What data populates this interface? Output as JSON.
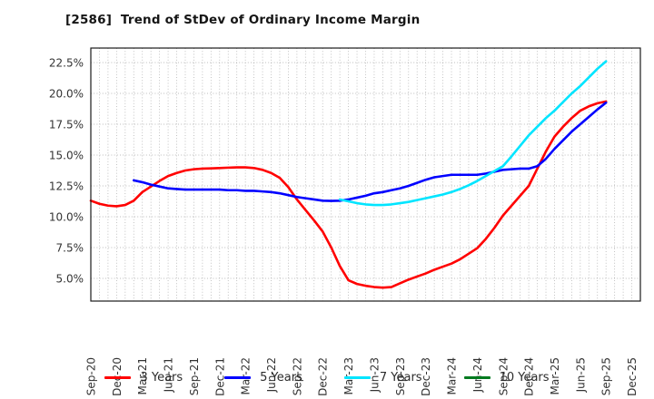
{
  "page": {
    "title": "[2586]  Trend of StDev of Ordinary Income Margin"
  },
  "chart_data": {
    "type": "line",
    "title": "[2586]  Trend of StDev of Ordinary Income Margin",
    "x_unit": "month",
    "x_start_label": "Sep-20",
    "x_tick_step_months": 3,
    "x_tick_labels": [
      "Sep-20",
      "Dec-20",
      "Mar-21",
      "Jun-21",
      "Sep-21",
      "Dec-21",
      "Mar-22",
      "Jun-22",
      "Sep-22",
      "Dec-22",
      "Mar-23",
      "Jun-23",
      "Sep-23",
      "Dec-23",
      "Mar-24",
      "Jun-24",
      "Sep-24",
      "Dec-24",
      "Mar-25",
      "Jun-25",
      "Sep-25",
      "Dec-25"
    ],
    "x_total_months": 64,
    "ylim": [
      3.16,
      23.6
    ],
    "yticks": [
      5.0,
      7.5,
      10.0,
      12.5,
      15.0,
      17.5,
      20.0,
      22.5
    ],
    "y_tick_labels": [
      "5.0%",
      "7.5%",
      "10.0%",
      "12.5%",
      "15.0%",
      "17.5%",
      "20.0%",
      "22.5%"
    ],
    "grid": "dotted-gray, horizontal at yticks, vertical monthly",
    "legend_position": "bottom-center",
    "series": [
      {
        "name": "3 Years",
        "color": "#ff0000",
        "start_month_index": 0,
        "monthly_values": [
          11.3,
          11.05,
          10.9,
          10.85,
          10.95,
          11.3,
          12.0,
          12.45,
          12.9,
          13.3,
          13.55,
          13.75,
          13.85,
          13.9,
          13.92,
          13.95,
          13.98,
          14.0,
          14.0,
          13.95,
          13.8,
          13.55,
          13.15,
          12.4,
          11.4,
          10.55,
          9.7,
          8.8,
          7.5,
          6.0,
          4.85,
          4.55,
          4.4,
          4.3,
          4.25,
          4.3,
          4.6,
          4.9,
          5.15,
          5.4,
          5.7,
          5.95,
          6.2,
          6.55,
          7.0,
          7.45,
          8.2,
          9.1,
          10.1,
          10.9,
          11.7,
          12.5,
          13.9,
          15.3,
          16.5,
          17.3,
          18.0,
          18.6,
          18.95,
          19.2,
          19.35
        ]
      },
      {
        "name": "5 Years",
        "color": "#0000ff",
        "start_month_index": 5,
        "monthly_values": [
          12.95,
          12.8,
          12.6,
          12.45,
          12.3,
          12.25,
          12.2,
          12.2,
          12.2,
          12.2,
          12.2,
          12.15,
          12.15,
          12.1,
          12.1,
          12.05,
          12.0,
          11.9,
          11.75,
          11.6,
          11.5,
          11.4,
          11.3,
          11.28,
          11.3,
          11.4,
          11.55,
          11.7,
          11.9,
          12.0,
          12.15,
          12.3,
          12.5,
          12.75,
          13.0,
          13.2,
          13.3,
          13.4,
          13.4,
          13.4,
          13.4,
          13.5,
          13.65,
          13.8,
          13.85,
          13.9,
          13.9,
          14.1,
          14.7,
          15.5,
          16.2,
          16.9,
          17.5,
          18.1,
          18.7,
          19.25
        ]
      },
      {
        "name": "7 Years",
        "color": "#00e5ff",
        "start_month_index": 29,
        "monthly_values": [
          11.4,
          11.25,
          11.1,
          11.0,
          10.95,
          10.95,
          11.0,
          11.1,
          11.2,
          11.35,
          11.5,
          11.65,
          11.8,
          12.0,
          12.25,
          12.55,
          12.9,
          13.3,
          13.7,
          14.1,
          14.9,
          15.75,
          16.6,
          17.3,
          18.0,
          18.6,
          19.3,
          20.0,
          20.6,
          21.3,
          22.0,
          22.6
        ]
      },
      {
        "name": "10 Years",
        "color": "#007a1f",
        "start_month_index": null,
        "monthly_values": []
      }
    ]
  },
  "legend": {
    "items": [
      {
        "label": "3 Years",
        "color": "#ff0000"
      },
      {
        "label": "5 Years",
        "color": "#0000ff"
      },
      {
        "label": "7 Years",
        "color": "#00e5ff"
      },
      {
        "label": "10 Years",
        "color": "#007a1f"
      }
    ]
  }
}
